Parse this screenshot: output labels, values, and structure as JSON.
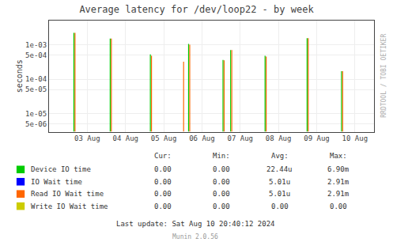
{
  "chart_data": {
    "type": "stem",
    "title": "Average latency for /dev/loop22 - by week",
    "ylabel": "seconds",
    "watermark": "RRDTOOL / TOBI OETIKER",
    "footer": [
      "Last update: Sat Aug 10 20:40:12 2024",
      "Munin 2.0.56"
    ],
    "log": "y",
    "grid": true,
    "xlim": [
      2.0,
      10.5
    ],
    "ylim": [
      3e-06,
      0.005
    ],
    "xticks": [
      {
        "value": 3,
        "label": "03 Aug"
      },
      {
        "value": 4,
        "label": "04 Aug"
      },
      {
        "value": 5,
        "label": "05 Aug"
      },
      {
        "value": 6,
        "label": "06 Aug"
      },
      {
        "value": 7,
        "label": "07 Aug"
      },
      {
        "value": 8,
        "label": "08 Aug"
      },
      {
        "value": 9,
        "label": "09 Aug"
      },
      {
        "value": 10,
        "label": "10 Aug"
      }
    ],
    "yticks": [
      {
        "value": 5e-06,
        "label": "5e-06"
      },
      {
        "value": 1e-05,
        "label": "1e-05"
      },
      {
        "value": 5e-05,
        "label": "5e-05"
      },
      {
        "value": 0.0001,
        "label": "1e-04"
      },
      {
        "value": 0.0005,
        "label": "5e-04"
      },
      {
        "value": 0.001,
        "label": "1e-03"
      }
    ],
    "legend_header": [
      "Cur:",
      "Min:",
      "Avg:",
      "Max:"
    ],
    "series": [
      {
        "name": "Device IO time",
        "color": "#00cc00",
        "stats": [
          "0.00",
          "0.00",
          "22.44u",
          "6.90m"
        ],
        "x": [
          2.65,
          3.6,
          4.65,
          5.65,
          6.55,
          6.75,
          7.65,
          8.75,
          9.65
        ],
        "values": [
          0.0022,
          0.0015,
          0.00052,
          0.00105,
          0.00036,
          0.0007,
          0.00048,
          0.00155,
          0.00017
        ]
      },
      {
        "name": "IO Wait time",
        "color": "#0000ff",
        "stats": [
          "0.00",
          "0.00",
          "5.01u",
          "2.91m"
        ],
        "x": [],
        "values": []
      },
      {
        "name": "Read IO Wait time",
        "color": "#ff6600",
        "stats": [
          "0.00",
          "0.00",
          "5.01u",
          "2.91m"
        ],
        "x": [
          2.68,
          3.63,
          4.68,
          5.52,
          5.68,
          6.58,
          6.78,
          7.68,
          8.78,
          9.68
        ],
        "values": [
          0.0022,
          0.0015,
          0.00048,
          0.00032,
          0.001,
          0.00035,
          0.0007,
          0.00045,
          0.00155,
          0.00017
        ]
      },
      {
        "name": "Write IO Wait time",
        "color": "#cccc00",
        "stats": [
          "0.00",
          "0.00",
          "0.00",
          "0.00"
        ],
        "x": [],
        "values": []
      }
    ]
  }
}
